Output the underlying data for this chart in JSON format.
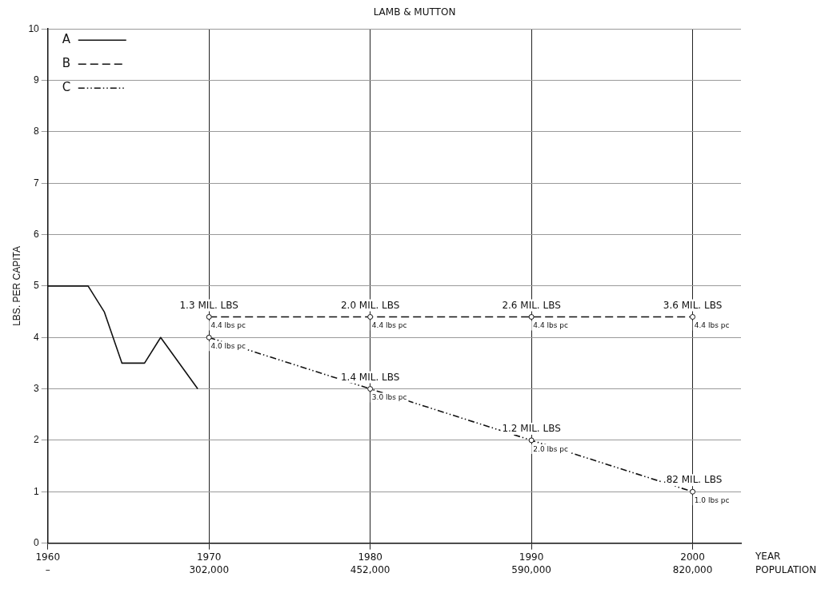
{
  "chart_data": {
    "type": "line",
    "title": "LAMB & MUTTON",
    "xlabel": "YEAR",
    "ylabel": "LBS. PER CAPITA",
    "xlim": [
      1960,
      2003
    ],
    "xticks": [
      1960,
      1970,
      1980,
      1990,
      2000
    ],
    "ylim": [
      0,
      10
    ],
    "yticks": [
      0,
      1,
      2,
      3,
      4,
      5,
      6,
      7,
      8,
      9,
      10
    ],
    "grid": true,
    "legend": "top left",
    "series": [
      {
        "name": "A",
        "color": "#111111",
        "line_style": "solid",
        "marker": "none",
        "x": [
          1960,
          1962.5,
          1963.5,
          1964.6,
          1966,
          1967,
          1969.3
        ],
        "values": [
          5,
          5,
          4.5,
          3.5,
          3.5,
          4,
          3
        ]
      },
      {
        "name": "B",
        "color": "#111111",
        "line_style": "dashed",
        "marker": "circle",
        "x": [
          1970,
          1980,
          1990,
          2000
        ],
        "values": [
          4.4,
          4.4,
          4.4,
          4.4
        ]
      },
      {
        "name": "C",
        "color": "#111111",
        "line_style": "dotted",
        "marker": "circle",
        "x": [
          1970,
          1980,
          1990,
          2000
        ],
        "values": [
          4.0,
          3.0,
          2.0,
          1.0
        ]
      }
    ],
    "annotations": [
      "–",
      "302,000",
      "452,000",
      "590,000",
      "820,000",
      "POPULATION",
      {
        "text": "1.3 MIL. LBS",
        "x": 1970,
        "y": 4.4
      },
      {
        "text": "4.4 lbs pc",
        "x": 1970,
        "y": 4.4
      },
      {
        "text": "2.0 MIL. LBS",
        "x": 1980,
        "y": 4.4
      },
      {
        "text": "4.4 lbs pc",
        "x": 1980,
        "y": 4.4
      },
      {
        "text": "2.6 MIL. LBS",
        "x": 1990,
        "y": 4.4
      },
      {
        "text": "4.4 lbs pc",
        "x": 1990,
        "y": 4.4
      },
      {
        "text": "3.6 MIL. LBS",
        "x": 2000,
        "y": 4.4
      },
      {
        "text": "4.4 lbs pc",
        "x": 2000,
        "y": 4.4
      },
      {
        "text": "4.0 lbs pc",
        "x": 1970,
        "y": 4.0
      },
      {
        "text": "1.4 MIL. LBS",
        "x": 1980,
        "y": 3.0
      },
      {
        "text": "3.0 lbs pc",
        "x": 1980,
        "y": 3.0
      },
      {
        "text": "1.2 MIL. LBS",
        "x": 1990,
        "y": 2.0
      },
      {
        "text": "2.0 lbs pc",
        "x": 1990,
        "y": 2.0
      },
      {
        "text": ".82 MIL. LBS",
        "x": 2000,
        "y": 1.0
      },
      {
        "text": "1.0 lbs pc",
        "x": 2000,
        "y": 1.0
      }
    ]
  }
}
